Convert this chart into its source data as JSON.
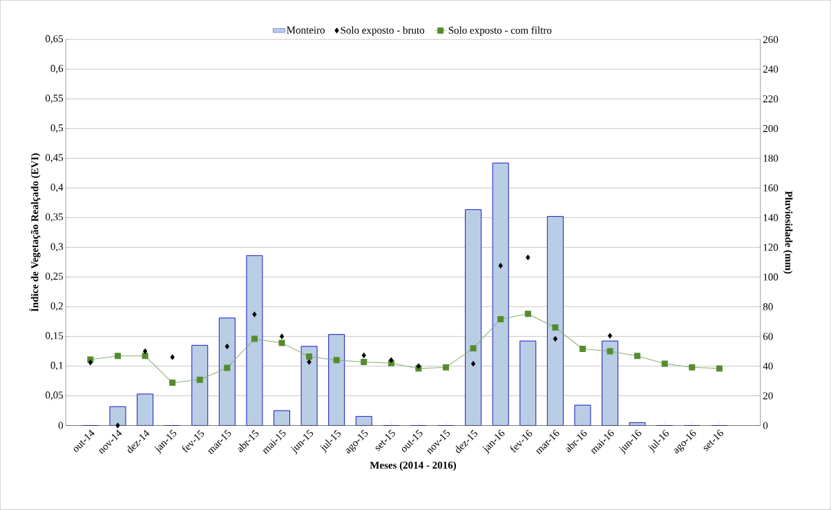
{
  "chart_data": {
    "type": "line",
    "xlabel": "Meses (2014 - 2016)",
    "ylabel": "Índice de Vegetação Realçado (EVI)",
    "y2label": "Pluviosidade (mm)",
    "categories": [
      "out-14",
      "nov-14",
      "dez-14",
      "jan-15",
      "fev-15",
      "mar-15",
      "abr-15",
      "mai-15",
      "jun-15",
      "jul-15",
      "ago-15",
      "set-15",
      "out-15",
      "nov-15",
      "dez-15",
      "jan-16",
      "fev-16",
      "mar-16",
      "abr-16",
      "mai-16",
      "jun-16",
      "jul-16",
      "ago-16",
      "set-16"
    ],
    "series": [
      {
        "name": "Monteiro",
        "type": "bar",
        "axis": "y2",
        "color": "#b9cde5",
        "values": [
          0,
          12.7,
          21.2,
          0,
          54,
          72.4,
          114.4,
          10,
          53.3,
          61.3,
          6.1,
          0,
          0,
          0,
          145.4,
          176.8,
          56.9,
          140.8,
          13.7,
          56.9,
          1.9,
          0,
          0,
          0
        ]
      },
      {
        "name": "Solo exposto - bruto",
        "type": "scatter",
        "marker": "diamond",
        "color": "#000000",
        "values": [
          0.106,
          0.0,
          0.125,
          0.115,
          null,
          0.133,
          0.187,
          0.15,
          0.107,
          null,
          0.118,
          0.11,
          0.1,
          null,
          0.104,
          0.269,
          0.283,
          0.146,
          null,
          0.151,
          null,
          null,
          null,
          null
        ]
      },
      {
        "name": "Solo exposto - com filtro",
        "marker": "square",
        "color": "#558b2f",
        "values": [
          0.111,
          0.117,
          0.117,
          0.072,
          0.077,
          0.097,
          0.146,
          0.139,
          0.116,
          0.11,
          0.107,
          0.105,
          0.096,
          0.098,
          0.13,
          0.179,
          0.188,
          0.165,
          0.129,
          0.125,
          0.117,
          0.104,
          0.098,
          0.096
        ]
      }
    ],
    "ylim": [
      0,
      0.65
    ],
    "yticks": [
      0,
      {
        "value": 0.05,
        "label": "0,05"
      },
      {
        "value": 0.1,
        "label": "0,1"
      },
      {
        "value": 0.15,
        "label": "0,15"
      },
      {
        "value": 0.2,
        "label": "0,2"
      },
      {
        "value": 0.25,
        "label": "0,25"
      },
      {
        "value": 0.3,
        "label": "0,3"
      },
      {
        "value": 0.35,
        "label": "0,35"
      },
      {
        "value": 0.4,
        "label": "0,4"
      },
      {
        "value": 0.45,
        "label": "0,45"
      },
      {
        "value": 0.5,
        "label": "0,5"
      },
      {
        "value": 0.55,
        "label": "0,55"
      },
      {
        "value": 0.6,
        "label": "0,6"
      },
      {
        "value": 0.65,
        "label": "0,65"
      }
    ],
    "y2lim": [
      0,
      260
    ],
    "y2ticks": [
      0,
      20,
      40,
      60,
      80,
      100,
      120,
      140,
      160,
      180,
      200,
      220,
      240,
      260
    ],
    "grid": "y",
    "legend": "top"
  }
}
